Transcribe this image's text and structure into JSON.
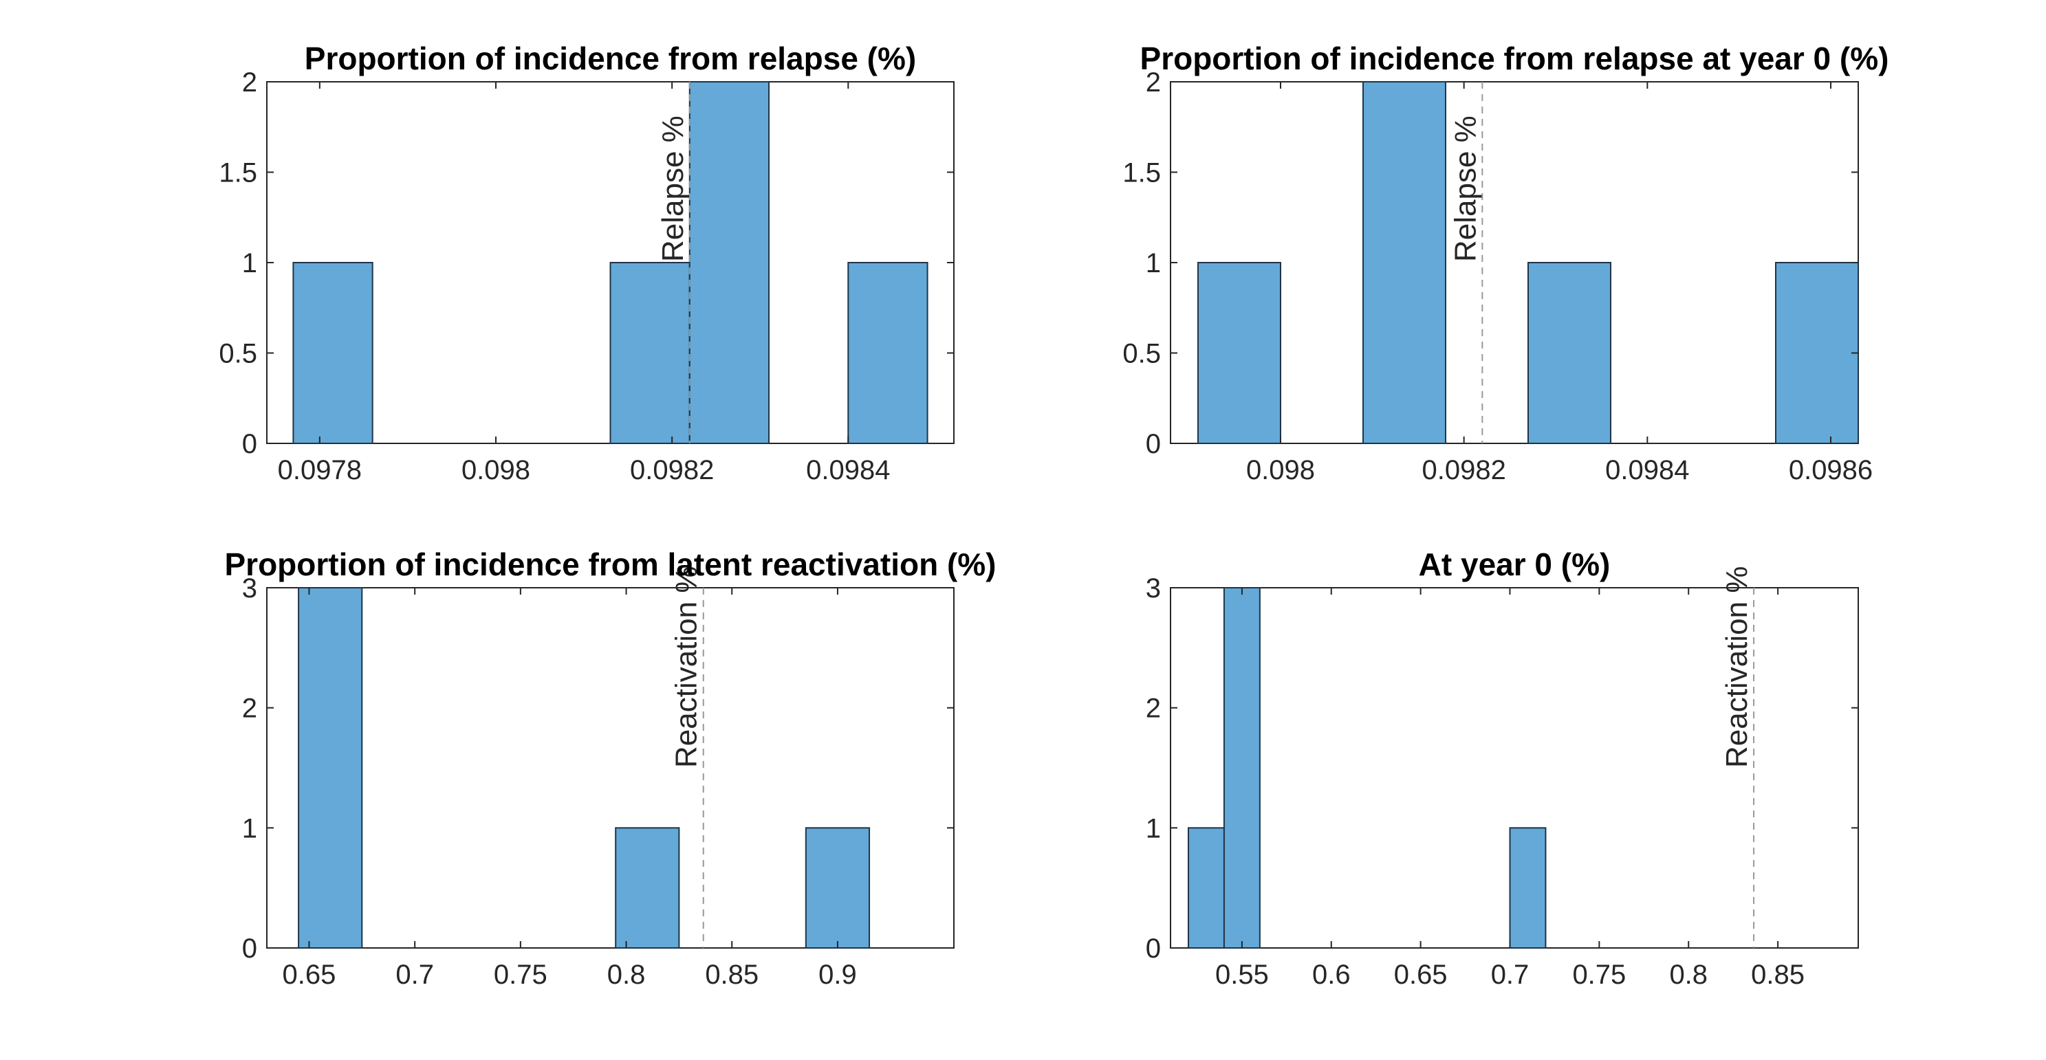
{
  "colors": {
    "bar_fill": "#64a9d8",
    "bar_edge": "#1f3447",
    "axis": "#262626",
    "ref_line": "#999999"
  },
  "chart_data": [
    {
      "type": "bar",
      "subtype": "histogram",
      "title": "Proportion of incidence from relapse (%)",
      "xlabel": "",
      "ylabel": "",
      "xlim": [
        0.09774,
        0.09852
      ],
      "ylim": [
        0,
        2
      ],
      "xticks": [
        0.0978,
        0.098,
        0.0982,
        0.0984
      ],
      "xtick_labels": [
        "0.0978",
        "0.098",
        "0.0982",
        "0.0984"
      ],
      "yticks": [
        0,
        0.5,
        1,
        1.5,
        2
      ],
      "ytick_labels": [
        "0",
        "0.5",
        "1",
        "1.5",
        "2"
      ],
      "bins": [
        {
          "x0": 0.09777,
          "x1": 0.09786,
          "count": 1
        },
        {
          "x0": 0.09786,
          "x1": 0.09795,
          "count": 0
        },
        {
          "x0": 0.09795,
          "x1": 0.09804,
          "count": 0
        },
        {
          "x0": 0.09804,
          "x1": 0.09813,
          "count": 0
        },
        {
          "x0": 0.09813,
          "x1": 0.09822,
          "count": 1
        },
        {
          "x0": 0.09822,
          "x1": 0.09831,
          "count": 2
        },
        {
          "x0": 0.09831,
          "x1": 0.0984,
          "count": 0
        },
        {
          "x0": 0.0984,
          "x1": 0.09849,
          "count": 1
        }
      ],
      "reference_line": {
        "x": 0.09822,
        "label": "Relapse %"
      },
      "grid": false
    },
    {
      "type": "bar",
      "subtype": "histogram",
      "title": "Proportion of incidence from relapse at year 0 (%)",
      "xlabel": "",
      "ylabel": "",
      "xlim": [
        0.09788,
        0.09863
      ],
      "ylim": [
        0,
        2
      ],
      "xticks": [
        0.098,
        0.0982,
        0.0984,
        0.0986
      ],
      "xtick_labels": [
        "0.098",
        "0.0982",
        "0.0984",
        "0.0986"
      ],
      "yticks": [
        0,
        0.5,
        1,
        1.5,
        2
      ],
      "ytick_labels": [
        "0",
        "0.5",
        "1",
        "1.5",
        "2"
      ],
      "bins": [
        {
          "x0": 0.09791,
          "x1": 0.098,
          "count": 1
        },
        {
          "x0": 0.098,
          "x1": 0.09809,
          "count": 0
        },
        {
          "x0": 0.09809,
          "x1": 0.09818,
          "count": 2
        },
        {
          "x0": 0.09818,
          "x1": 0.09827,
          "count": 0
        },
        {
          "x0": 0.09827,
          "x1": 0.09836,
          "count": 1
        },
        {
          "x0": 0.09836,
          "x1": 0.09845,
          "count": 0
        },
        {
          "x0": 0.09845,
          "x1": 0.09854,
          "count": 0
        },
        {
          "x0": 0.09854,
          "x1": 0.09863,
          "count": 1
        }
      ],
      "reference_line": {
        "x": 0.09822,
        "label": "Relapse %"
      },
      "grid": false
    },
    {
      "type": "bar",
      "subtype": "histogram",
      "title": "Proportion of incidence from latent reactivation (%)",
      "xlabel": "",
      "ylabel": "",
      "xlim": [
        0.63,
        0.955
      ],
      "ylim": [
        0,
        3
      ],
      "xticks": [
        0.65,
        0.7,
        0.75,
        0.8,
        0.85,
        0.9
      ],
      "xtick_labels": [
        "0.65",
        "0.7",
        "0.75",
        "0.8",
        "0.85",
        "0.9"
      ],
      "yticks": [
        0,
        1,
        2,
        3
      ],
      "ytick_labels": [
        "0",
        "1",
        "2",
        "3"
      ],
      "bins": [
        {
          "x0": 0.645,
          "x1": 0.675,
          "count": 3
        },
        {
          "x0": 0.675,
          "x1": 0.705,
          "count": 0
        },
        {
          "x0": 0.705,
          "x1": 0.735,
          "count": 0
        },
        {
          "x0": 0.735,
          "x1": 0.765,
          "count": 0
        },
        {
          "x0": 0.765,
          "x1": 0.795,
          "count": 0
        },
        {
          "x0": 0.795,
          "x1": 0.825,
          "count": 1
        },
        {
          "x0": 0.825,
          "x1": 0.855,
          "count": 0
        },
        {
          "x0": 0.855,
          "x1": 0.885,
          "count": 0
        },
        {
          "x0": 0.885,
          "x1": 0.915,
          "count": 1
        }
      ],
      "reference_line": {
        "x": 0.8365,
        "label": "Reactivation %"
      },
      "grid": false
    },
    {
      "type": "bar",
      "subtype": "histogram",
      "title": "At year 0 (%)",
      "xlabel": "",
      "ylabel": "",
      "xlim": [
        0.51,
        0.895
      ],
      "ylim": [
        0,
        3
      ],
      "xticks": [
        0.55,
        0.6,
        0.65,
        0.7,
        0.75,
        0.8,
        0.85
      ],
      "xtick_labels": [
        "0.55",
        "0.6",
        "0.65",
        "0.7",
        "0.75",
        "0.8",
        "0.85"
      ],
      "yticks": [
        0,
        1,
        2,
        3
      ],
      "ytick_labels": [
        "0",
        "1",
        "2",
        "3"
      ],
      "bins": [
        {
          "x0": 0.52,
          "x1": 0.54,
          "count": 1
        },
        {
          "x0": 0.54,
          "x1": 0.56,
          "count": 3
        },
        {
          "x0": 0.56,
          "x1": 0.58,
          "count": 0
        },
        {
          "x0": 0.58,
          "x1": 0.6,
          "count": 0
        },
        {
          "x0": 0.6,
          "x1": 0.62,
          "count": 0
        },
        {
          "x0": 0.62,
          "x1": 0.64,
          "count": 0
        },
        {
          "x0": 0.64,
          "x1": 0.66,
          "count": 0
        },
        {
          "x0": 0.66,
          "x1": 0.68,
          "count": 0
        },
        {
          "x0": 0.68,
          "x1": 0.7,
          "count": 0
        },
        {
          "x0": 0.7,
          "x1": 0.72,
          "count": 1
        }
      ],
      "reference_line": {
        "x": 0.8365,
        "label": "Reactivation %"
      },
      "grid": false
    }
  ]
}
